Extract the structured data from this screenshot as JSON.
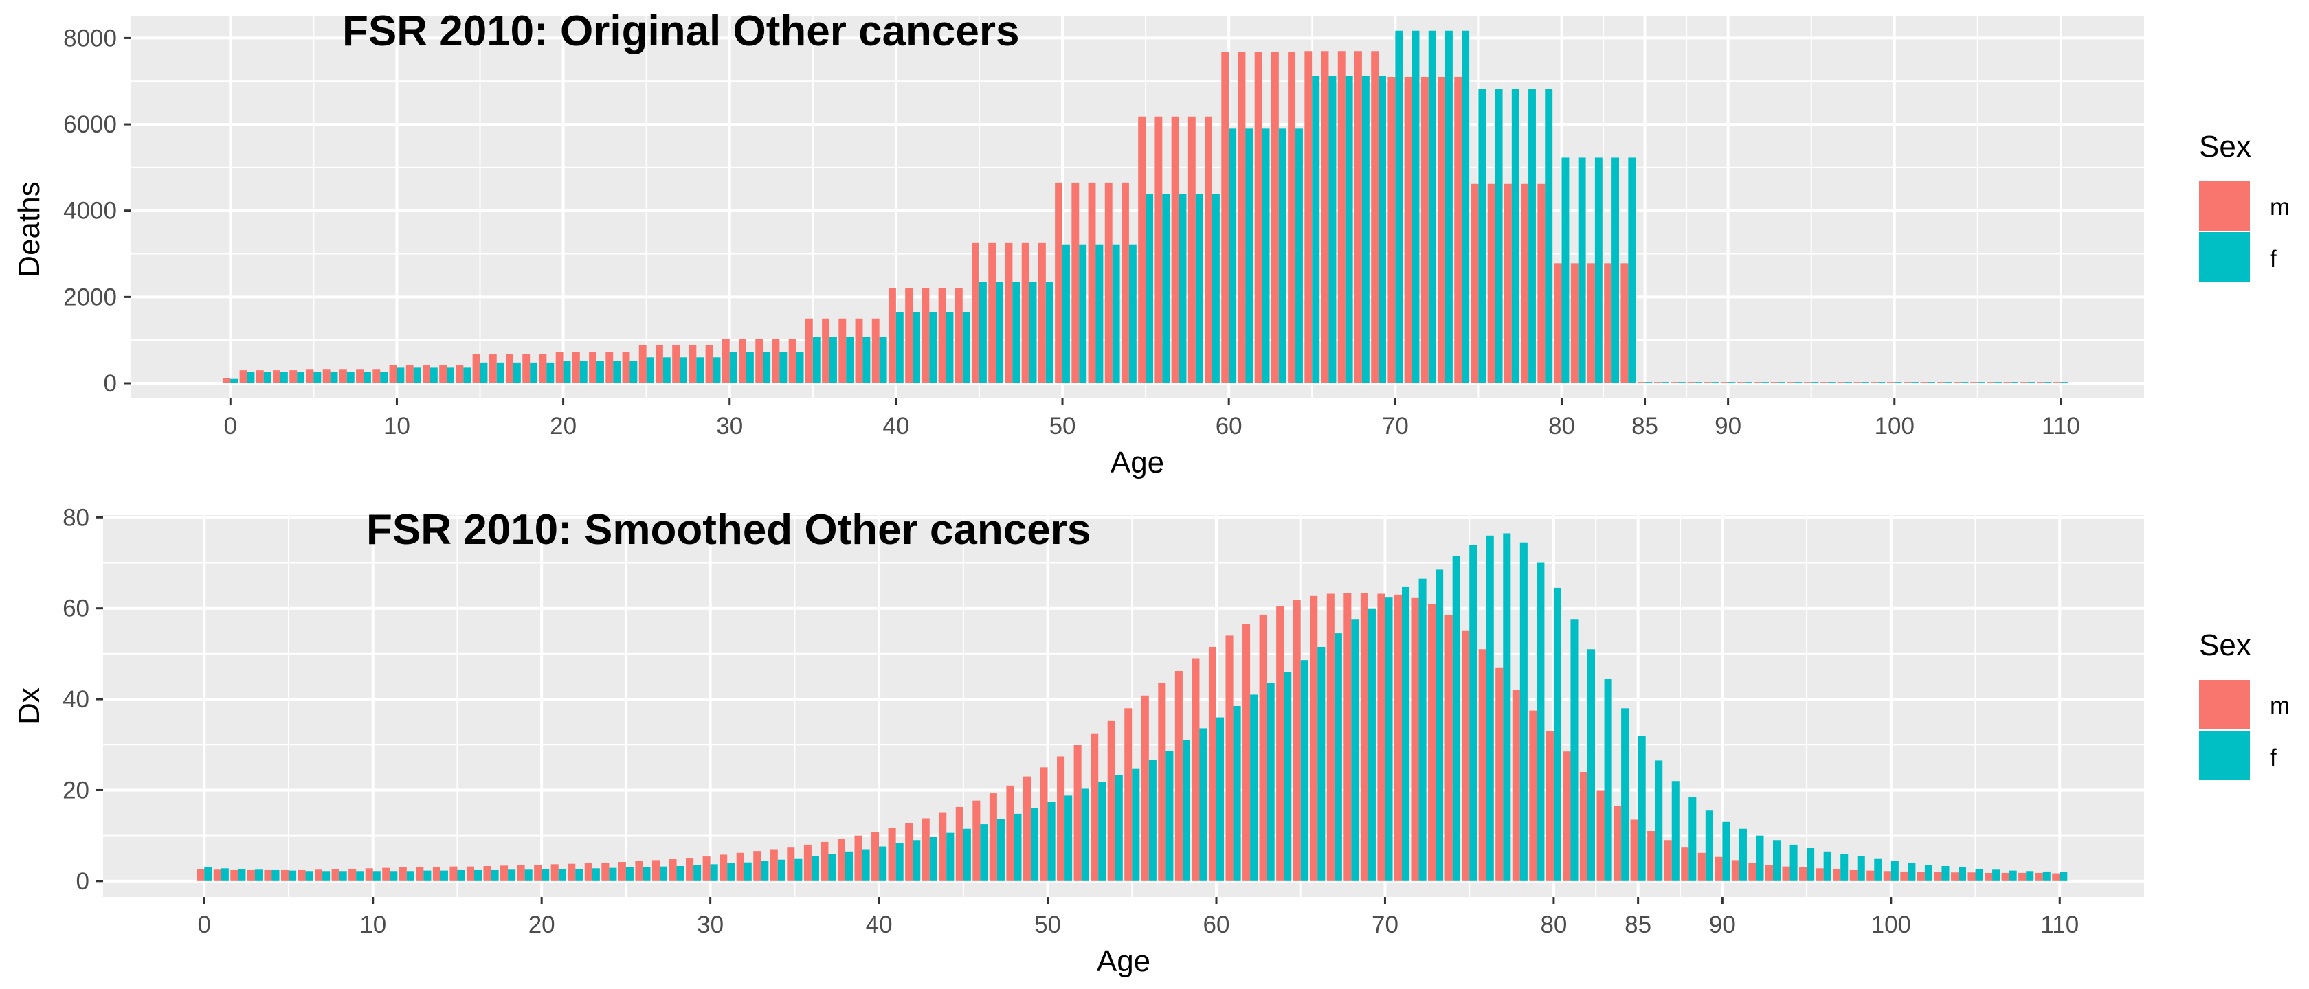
{
  "chart_data": [
    {
      "type": "bar",
      "title": "FSR 2010: Original Other cancers",
      "xlabel": "Age",
      "ylabel": "Deaths",
      "xlim": [
        -6,
        115
      ],
      "ylim": [
        -350,
        8500
      ],
      "x_ticks": [
        0,
        10,
        20,
        30,
        40,
        50,
        60,
        70,
        80,
        85,
        90,
        100,
        110
      ],
      "y_ticks": [
        0,
        2000,
        4000,
        6000,
        8000
      ],
      "grid": true,
      "legend": {
        "title": "Sex",
        "position": "right",
        "entries": [
          "m",
          "f"
        ]
      },
      "colors": {
        "m": "#F8766D",
        "f": "#00BFC4",
        "panel": "#EBEBEB",
        "grid": "#FFFFFF"
      },
      "series": [
        {
          "name": "m",
          "values": [
            120,
            300,
            300,
            300,
            300,
            330,
            330,
            330,
            330,
            330,
            420,
            420,
            420,
            420,
            420,
            680,
            680,
            680,
            680,
            680,
            720,
            720,
            720,
            720,
            720,
            880,
            880,
            880,
            880,
            880,
            1020,
            1020,
            1020,
            1020,
            1020,
            1500,
            1500,
            1500,
            1500,
            1500,
            2200,
            2200,
            2200,
            2200,
            2200,
            3250,
            3250,
            3250,
            3250,
            3250,
            4650,
            4650,
            4650,
            4650,
            4650,
            6180,
            6180,
            6180,
            6180,
            6180,
            7680,
            7680,
            7680,
            7680,
            7680,
            7700,
            7700,
            7700,
            7700,
            7700,
            7100,
            7100,
            7100,
            7100,
            7100,
            4620,
            4620,
            4620,
            4620,
            4620,
            2780,
            2780,
            2780,
            2780,
            2780,
            30,
            30,
            30,
            30,
            30,
            30,
            30,
            30,
            30,
            30,
            30,
            30,
            30,
            30,
            30,
            30,
            30,
            30,
            30,
            30,
            30,
            30,
            30,
            30,
            30,
            30
          ]
        },
        {
          "name": "f",
          "values": [
            100,
            260,
            260,
            260,
            260,
            270,
            270,
            270,
            270,
            270,
            360,
            360,
            360,
            360,
            360,
            480,
            480,
            480,
            480,
            480,
            510,
            510,
            510,
            510,
            510,
            600,
            600,
            600,
            600,
            600,
            720,
            720,
            720,
            720,
            720,
            1080,
            1080,
            1080,
            1080,
            1080,
            1650,
            1650,
            1650,
            1650,
            1650,
            2350,
            2350,
            2350,
            2350,
            2350,
            3220,
            3220,
            3220,
            3220,
            3220,
            4380,
            4380,
            4380,
            4380,
            4380,
            5900,
            5900,
            5900,
            5900,
            5900,
            7120,
            7120,
            7120,
            7120,
            7120,
            8170,
            8170,
            8170,
            8170,
            8170,
            6820,
            6820,
            6820,
            6820,
            6820,
            5230,
            5230,
            5230,
            5230,
            5230,
            30,
            30,
            30,
            30,
            30,
            30,
            30,
            30,
            30,
            30,
            30,
            30,
            30,
            30,
            30,
            30,
            30,
            30,
            30,
            30,
            30,
            30,
            30,
            30,
            30,
            30
          ]
        }
      ]
    },
    {
      "type": "bar",
      "title": "FSR 2010: Smoothed Other cancers",
      "xlabel": "Age",
      "ylabel": "Dx",
      "xlim": [
        -6,
        115
      ],
      "ylim": [
        -3.5,
        80.5
      ],
      "x_ticks": [
        0,
        10,
        20,
        30,
        40,
        50,
        60,
        70,
        80,
        85,
        90,
        100,
        110
      ],
      "y_ticks": [
        0,
        20,
        40,
        60,
        80
      ],
      "grid": true,
      "legend": {
        "title": "Sex",
        "position": "right",
        "entries": [
          "m",
          "f"
        ]
      },
      "colors": {
        "m": "#F8766D",
        "f": "#00BFC4",
        "panel": "#EBEBEB",
        "grid": "#FFFFFF"
      },
      "series": [
        {
          "name": "m",
          "values": [
            2.6,
            2.5,
            2.4,
            2.4,
            2.4,
            2.4,
            2.4,
            2.5,
            2.6,
            2.7,
            2.8,
            2.9,
            3.0,
            3.1,
            3.1,
            3.2,
            3.2,
            3.3,
            3.4,
            3.5,
            3.6,
            3.7,
            3.8,
            3.9,
            4.0,
            4.2,
            4.4,
            4.6,
            4.8,
            5.1,
            5.4,
            5.8,
            6.2,
            6.6,
            7.0,
            7.5,
            8.0,
            8.6,
            9.3,
            10.0,
            10.8,
            11.7,
            12.7,
            13.8,
            15.0,
            16.3,
            17.7,
            19.3,
            21.0,
            23.0,
            25.0,
            27.4,
            29.9,
            32.5,
            35.2,
            38.0,
            40.8,
            43.5,
            46.2,
            49.0,
            51.5,
            54.0,
            56.5,
            58.6,
            60.5,
            61.8,
            62.7,
            63.2,
            63.3,
            63.4,
            63.2,
            63.0,
            62.4,
            61.0,
            58.5,
            55.0,
            51.0,
            47.0,
            42.0,
            37.5,
            33.0,
            28.5,
            24.0,
            20.0,
            16.5,
            13.5,
            11.0,
            9.0,
            7.5,
            6.2,
            5.3,
            4.6,
            4.0,
            3.6,
            3.2,
            3.0,
            2.8,
            2.6,
            2.4,
            2.3,
            2.2,
            2.1,
            2.0,
            2.0,
            1.9,
            1.9,
            1.8,
            1.8,
            1.8,
            1.8,
            1.7
          ]
        },
        {
          "name": "f",
          "values": [
            3.0,
            2.8,
            2.6,
            2.5,
            2.4,
            2.3,
            2.2,
            2.2,
            2.2,
            2.2,
            2.2,
            2.2,
            2.2,
            2.3,
            2.3,
            2.4,
            2.4,
            2.4,
            2.5,
            2.5,
            2.6,
            2.7,
            2.7,
            2.8,
            2.9,
            3.0,
            3.1,
            3.2,
            3.3,
            3.5,
            3.7,
            3.9,
            4.1,
            4.4,
            4.7,
            5.0,
            5.5,
            6.0,
            6.5,
            7.0,
            7.6,
            8.3,
            9.0,
            9.8,
            10.6,
            11.5,
            12.5,
            13.6,
            14.8,
            16.0,
            17.4,
            18.8,
            20.3,
            21.8,
            23.3,
            24.8,
            26.6,
            28.6,
            31.0,
            33.6,
            36.0,
            38.5,
            41.0,
            43.5,
            46.0,
            48.6,
            51.5,
            54.5,
            57.5,
            60.0,
            62.5,
            64.8,
            66.5,
            68.5,
            71.5,
            74.0,
            76.0,
            76.5,
            74.5,
            70.0,
            64.5,
            57.5,
            51.0,
            44.5,
            38.0,
            32.0,
            26.5,
            22.0,
            18.5,
            15.5,
            13.0,
            11.5,
            10.0,
            9.0,
            8.0,
            7.3,
            6.5,
            6.0,
            5.5,
            5.0,
            4.5,
            4.0,
            3.6,
            3.3,
            3.0,
            2.7,
            2.5,
            2.3,
            2.2,
            2.1,
            2.0
          ]
        }
      ]
    }
  ]
}
